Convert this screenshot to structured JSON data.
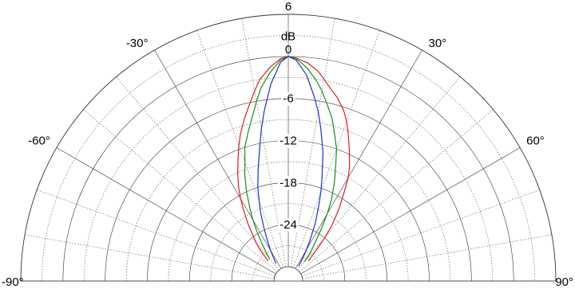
{
  "chart_data": {
    "type": "line",
    "subtype": "polar-half",
    "title": "",
    "radial_unit": "dB",
    "radial_range": [
      -30,
      6
    ],
    "radial_ticks": [
      {
        "value": 6,
        "label": "6"
      },
      {
        "value": 0,
        "label": "0"
      },
      {
        "value": -6,
        "label": "-6"
      },
      {
        "value": -12,
        "label": "-12"
      },
      {
        "value": -18,
        "label": "-18"
      },
      {
        "value": -24,
        "label": "-24"
      }
    ],
    "angle_ticks": [
      {
        "value": -90,
        "label": "-90°"
      },
      {
        "value": -60,
        "label": "-60°"
      },
      {
        "value": -30,
        "label": "-30°"
      },
      {
        "value": 30,
        "label": "30°"
      },
      {
        "value": 60,
        "label": "60°"
      },
      {
        "value": 90,
        "label": "90°"
      }
    ],
    "grid": true,
    "series": [
      {
        "color": "#d42020",
        "angles": [
          -45,
          -42,
          -40,
          -38,
          -35,
          -32,
          -30,
          -28,
          -25,
          -22,
          -20,
          -18,
          -15,
          -12,
          -10,
          -8,
          -5,
          -2,
          0,
          2,
          5,
          8,
          10,
          12,
          15,
          18,
          20,
          22,
          25,
          28,
          30,
          32,
          35,
          38,
          40,
          42,
          45
        ],
        "values": [
          -28,
          -26,
          -25,
          -24,
          -22,
          -20,
          -18.5,
          -17,
          -15,
          -13,
          -11.5,
          -10,
          -8,
          -6,
          -4.5,
          -3,
          -1.5,
          -0.3,
          0,
          -0.2,
          -0.8,
          -1.8,
          -2.8,
          -3.8,
          -5,
          -6.5,
          -7.8,
          -9.3,
          -11.5,
          -13.5,
          -15,
          -17,
          -19.5,
          -22,
          -24,
          -26,
          -28
        ]
      },
      {
        "color": "#1a8a1a",
        "angles": [
          -40,
          -38,
          -35,
          -32,
          -30,
          -28,
          -25,
          -22,
          -20,
          -18,
          -15,
          -12,
          -10,
          -8,
          -5,
          -2,
          0,
          2,
          5,
          8,
          10,
          12,
          15,
          18,
          20,
          22,
          25,
          28,
          30,
          32,
          35,
          38,
          40
        ],
        "values": [
          -28,
          -27,
          -25.5,
          -23.5,
          -22,
          -20.5,
          -18,
          -15.5,
          -14,
          -12,
          -10,
          -7.8,
          -6,
          -4.2,
          -2.2,
          -0.5,
          0,
          -0.3,
          -1.5,
          -3.2,
          -4.5,
          -6,
          -8,
          -10.5,
          -12,
          -14,
          -16.5,
          -19,
          -21,
          -23,
          -25.5,
          -27,
          -28.5
        ]
      },
      {
        "color": "#1f2fd0",
        "angles": [
          -35,
          -32,
          -30,
          -28,
          -25,
          -22,
          -20,
          -18,
          -15,
          -12,
          -10,
          -8,
          -5,
          -2,
          0,
          2,
          5,
          8,
          10,
          12,
          15,
          18,
          20,
          22,
          25,
          28,
          30,
          32,
          35
        ],
        "values": [
          -29,
          -28,
          -27,
          -26,
          -24,
          -21.5,
          -20,
          -18,
          -15.5,
          -12.5,
          -10,
          -7.5,
          -3.8,
          -0.8,
          0,
          -0.5,
          -2.5,
          -5.5,
          -7.5,
          -9.8,
          -13,
          -16.5,
          -18.5,
          -20.5,
          -23,
          -25.5,
          -27,
          -28,
          -29.5
        ]
      }
    ]
  }
}
